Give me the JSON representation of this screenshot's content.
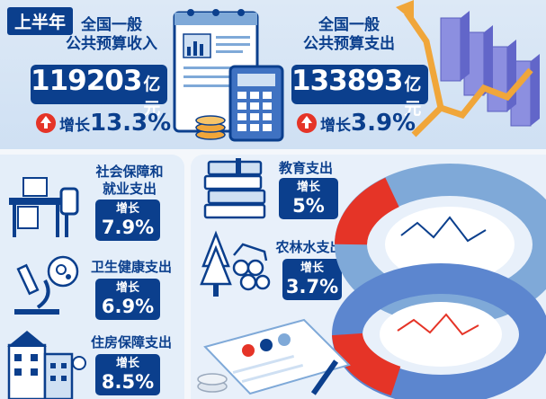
{
  "header": {
    "period_label": "上半年"
  },
  "revenue": {
    "title_line1": "全国一般",
    "title_line2": "公共预算收入",
    "amount": "119203",
    "unit": "亿元",
    "growth_label": "增长",
    "growth_value": "13.3%",
    "icon": "up-arrow-icon"
  },
  "expenditure": {
    "title_line1": "全国一般",
    "title_line2": "公共预算支出",
    "amount": "133893",
    "unit": "亿元",
    "growth_label": "增长",
    "growth_value": "3.9%",
    "icon": "up-arrow-icon"
  },
  "categories": [
    {
      "title_line1": "社会保障和",
      "title_line2": "就业支出",
      "growth_label": "增长",
      "growth_value": "7.9%",
      "icon": "office-desk-icon"
    },
    {
      "title_line1": "卫生健康支出",
      "title_line2": "",
      "growth_label": "增长",
      "growth_value": "6.9%",
      "icon": "microscope-icon"
    },
    {
      "title_line1": "住房保障支出",
      "title_line2": "",
      "growth_label": "增长",
      "growth_value": "8.5%",
      "icon": "building-icon"
    },
    {
      "title_line1": "教育支出",
      "title_line2": "",
      "growth_label": "增长",
      "growth_value": "5%",
      "icon": "books-icon"
    },
    {
      "title_line1": "农林水支出",
      "title_line2": "",
      "growth_label": "增长",
      "growth_value": "3.7%",
      "icon": "forest-water-icon"
    }
  ],
  "colors": {
    "primary": "#0b3f8d",
    "accent_red": "#e53427",
    "gold": "#f0a63a",
    "light_blue": "#dde9f6"
  }
}
